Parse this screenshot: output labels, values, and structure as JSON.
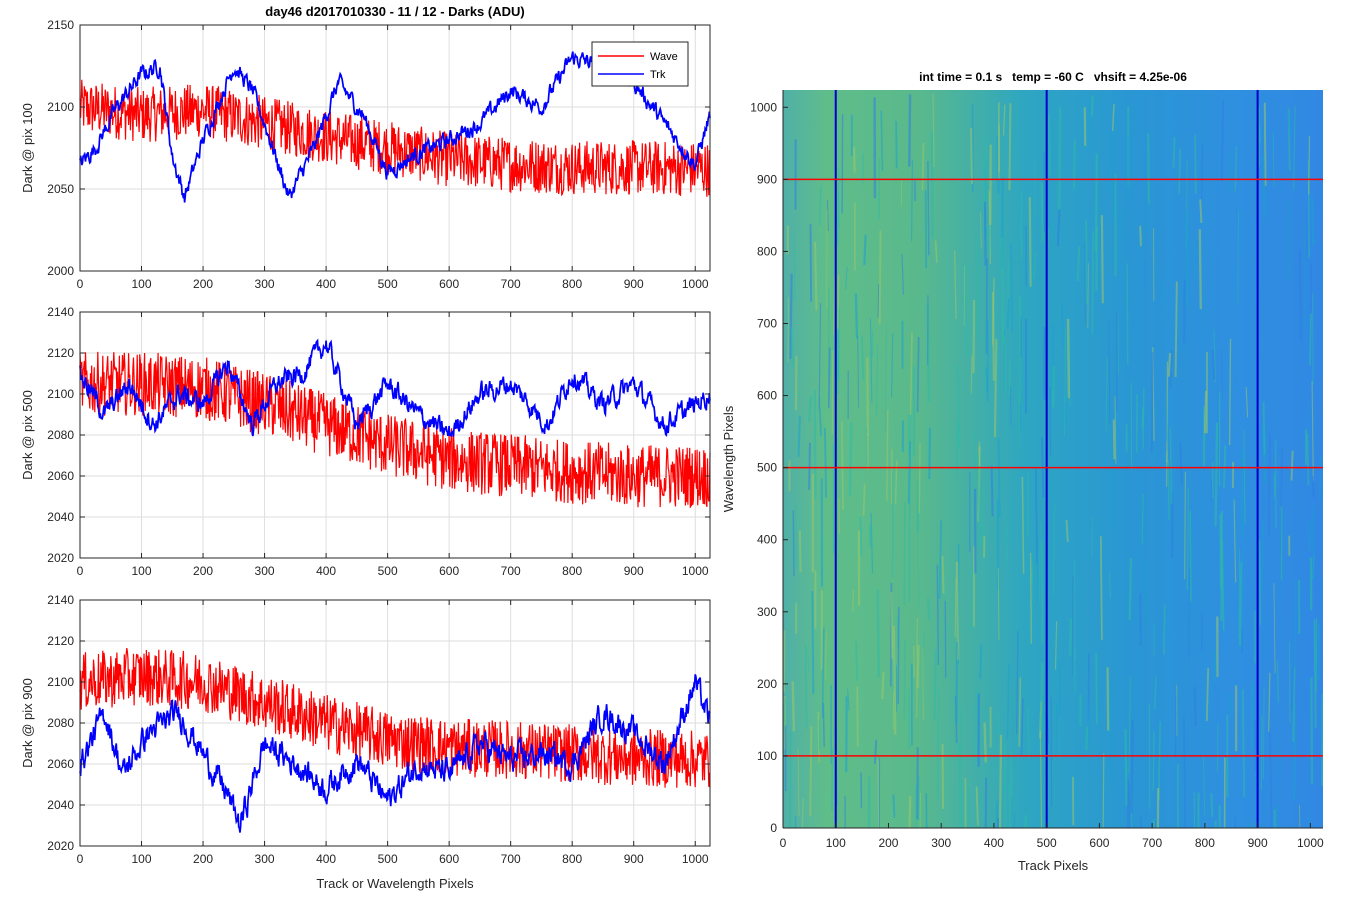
{
  "figure": {
    "title": "day46 d2017010330 - 11 / 12 - Darks (ADU)"
  },
  "chart_data": [
    {
      "type": "line",
      "ylabel": "Dark @ pix 100",
      "xlabel": "",
      "xlim": [
        0,
        1024
      ],
      "ylim": [
        2000,
        2150
      ],
      "x_ticks": [
        0,
        100,
        200,
        300,
        400,
        500,
        600,
        700,
        800,
        900,
        1000
      ],
      "y_ticks": [
        2000,
        2050,
        2100,
        2150
      ],
      "grid": true,
      "legend": {
        "placement": "top-right",
        "entries": [
          "Wave",
          "Trk"
        ]
      },
      "series": [
        {
          "name": "Wave",
          "color": "#ff0000",
          "noise": 13,
          "x": [
            0,
            100,
            200,
            300,
            400,
            500,
            600,
            700,
            800,
            900,
            1024
          ],
          "values": [
            2100,
            2095,
            2098,
            2090,
            2082,
            2075,
            2068,
            2065,
            2063,
            2063,
            2062
          ]
        },
        {
          "name": "Trk",
          "color": "#0000ff",
          "noise": 4,
          "x": [
            0,
            25,
            60,
            100,
            130,
            150,
            170,
            200,
            250,
            280,
            300,
            340,
            380,
            420,
            460,
            500,
            540,
            600,
            650,
            700,
            750,
            800,
            850,
            900,
            960,
            1000,
            1024
          ],
          "values": [
            2065,
            2075,
            2100,
            2120,
            2125,
            2070,
            2045,
            2080,
            2125,
            2110,
            2090,
            2045,
            2075,
            2115,
            2095,
            2060,
            2070,
            2080,
            2090,
            2110,
            2100,
            2130,
            2125,
            2115,
            2085,
            2065,
            2095
          ]
        }
      ]
    },
    {
      "type": "line",
      "ylabel": "Dark @ pix 500",
      "xlabel": "",
      "xlim": [
        0,
        1024
      ],
      "ylim": [
        2020,
        2140
      ],
      "x_ticks": [
        0,
        100,
        200,
        300,
        400,
        500,
        600,
        700,
        800,
        900,
        1000
      ],
      "y_ticks": [
        2020,
        2040,
        2060,
        2080,
        2100,
        2120,
        2140
      ],
      "grid": true,
      "series": [
        {
          "name": "Wave",
          "color": "#ff0000",
          "noise": 12,
          "x": [
            0,
            100,
            200,
            300,
            400,
            500,
            600,
            700,
            800,
            900,
            1024
          ],
          "values": [
            2105,
            2105,
            2103,
            2095,
            2085,
            2075,
            2068,
            2065,
            2062,
            2060,
            2060
          ]
        },
        {
          "name": "Trk",
          "color": "#0000ff",
          "noise": 4,
          "x": [
            0,
            40,
            80,
            120,
            160,
            200,
            240,
            280,
            320,
            360,
            400,
            450,
            500,
            550,
            600,
            650,
            700,
            760,
            800,
            850,
            900,
            950,
            1000,
            1024
          ],
          "values": [
            2110,
            2090,
            2105,
            2085,
            2100,
            2095,
            2115,
            2085,
            2105,
            2110,
            2125,
            2085,
            2105,
            2090,
            2080,
            2100,
            2105,
            2085,
            2110,
            2095,
            2105,
            2085,
            2095,
            2100
          ]
        }
      ]
    },
    {
      "type": "line",
      "ylabel": "Dark @ pix 900",
      "xlabel": "Track or Wavelength Pixels",
      "xlim": [
        0,
        1024
      ],
      "ylim": [
        2020,
        2140
      ],
      "x_ticks": [
        0,
        100,
        200,
        300,
        400,
        500,
        600,
        700,
        800,
        900,
        1000
      ],
      "y_ticks": [
        2020,
        2040,
        2060,
        2080,
        2100,
        2120,
        2140
      ],
      "grid": true,
      "series": [
        {
          "name": "Wave",
          "color": "#ff0000",
          "noise": 11,
          "x": [
            0,
            100,
            200,
            300,
            400,
            500,
            600,
            700,
            800,
            900,
            1024
          ],
          "values": [
            2100,
            2103,
            2100,
            2090,
            2080,
            2072,
            2068,
            2067,
            2065,
            2063,
            2062
          ]
        },
        {
          "name": "Trk",
          "color": "#0000ff",
          "noise": 5,
          "x": [
            0,
            40,
            70,
            110,
            160,
            200,
            240,
            260,
            300,
            350,
            400,
            450,
            500,
            550,
            600,
            650,
            700,
            750,
            800,
            850,
            900,
            950,
            1000,
            1024
          ],
          "values": [
            2060,
            2085,
            2055,
            2075,
            2085,
            2065,
            2045,
            2030,
            2070,
            2060,
            2048,
            2062,
            2042,
            2060,
            2055,
            2070,
            2062,
            2065,
            2060,
            2085,
            2075,
            2060,
            2100,
            2080
          ]
        }
      ]
    },
    {
      "type": "heatmap",
      "title": "int time = 0.1 s   temp = -60 C   vhsift = 4.25e-06",
      "xlabel": "Track Pixels",
      "ylabel": "Wavelength Pixels",
      "xlim": [
        0,
        1024
      ],
      "ylim": [
        0,
        1024
      ],
      "x_ticks": [
        0,
        100,
        200,
        300,
        400,
        500,
        600,
        700,
        800,
        900,
        1000
      ],
      "y_ticks": [
        0,
        100,
        200,
        300,
        400,
        500,
        600,
        700,
        800,
        900,
        1000
      ],
      "colormap": [
        "#2f7fe0",
        "#1ea0d0",
        "#2fb9a8",
        "#9ac66a"
      ],
      "markers": {
        "vertical": {
          "x": [
            100,
            500,
            900
          ],
          "color": "#0000cc"
        },
        "horizontal": {
          "y": [
            100,
            500,
            900
          ],
          "color": "#ff0000"
        }
      }
    }
  ]
}
